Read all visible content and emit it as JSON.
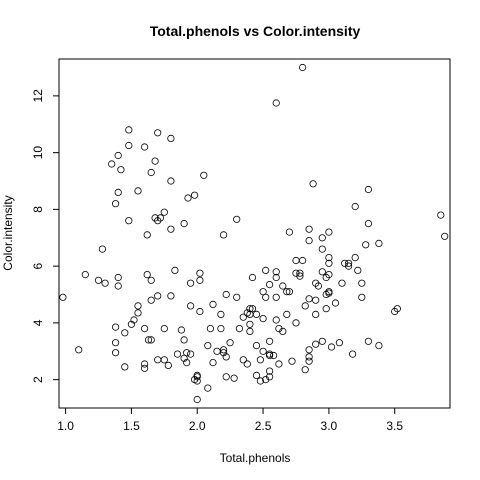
{
  "chart_data": {
    "type": "scatter",
    "title": "Total.phenols vs Color.intensity",
    "xlabel": "Total.phenols",
    "ylabel": "Color.intensity",
    "xlim": [
      0.95,
      3.92
    ],
    "ylim": [
      1.0,
      13.3
    ],
    "x_ticks": [
      1.0,
      1.5,
      2.0,
      2.5,
      3.0,
      3.5
    ],
    "x_tick_labels": [
      "1.0",
      "1.5",
      "2.0",
      "2.5",
      "3.0",
      "3.5"
    ],
    "y_ticks": [
      2,
      4,
      6,
      8,
      10,
      12
    ],
    "y_tick_labels": [
      "2",
      "4",
      "6",
      "8",
      "10",
      "12"
    ],
    "grid": false,
    "legend": "none",
    "marker": "open-circle",
    "points": [
      [
        0.98,
        4.9
      ],
      [
        1.1,
        3.05
      ],
      [
        1.15,
        5.7
      ],
      [
        1.25,
        5.5
      ],
      [
        1.28,
        6.6
      ],
      [
        1.3,
        5.4
      ],
      [
        1.35,
        9.6
      ],
      [
        1.38,
        3.3
      ],
      [
        1.38,
        2.95
      ],
      [
        1.38,
        3.85
      ],
      [
        1.38,
        8.2
      ],
      [
        1.4,
        5.6
      ],
      [
        1.4,
        8.6
      ],
      [
        1.4,
        9.9
      ],
      [
        1.4,
        5.3
      ],
      [
        1.42,
        9.4
      ],
      [
        1.45,
        3.65
      ],
      [
        1.45,
        2.45
      ],
      [
        1.48,
        10.8
      ],
      [
        1.48,
        10.25
      ],
      [
        1.48,
        7.6
      ],
      [
        1.5,
        3.95
      ],
      [
        1.52,
        4.1
      ],
      [
        1.55,
        4.6
      ],
      [
        1.55,
        4.35
      ],
      [
        1.55,
        8.65
      ],
      [
        1.6,
        10.2
      ],
      [
        1.6,
        2.55
      ],
      [
        1.6,
        2.4
      ],
      [
        1.6,
        3.8
      ],
      [
        1.62,
        5.7
      ],
      [
        1.62,
        7.1
      ],
      [
        1.63,
        3.4
      ],
      [
        1.65,
        3.4
      ],
      [
        1.65,
        4.8
      ],
      [
        1.65,
        5.5
      ],
      [
        1.65,
        9.3
      ],
      [
        1.68,
        9.7
      ],
      [
        1.68,
        7.7
      ],
      [
        1.7,
        10.7
      ],
      [
        1.7,
        7.6
      ],
      [
        1.7,
        4.95
      ],
      [
        1.7,
        2.7
      ],
      [
        1.72,
        7.7
      ],
      [
        1.75,
        7.9
      ],
      [
        1.75,
        2.7
      ],
      [
        1.75,
        3.8
      ],
      [
        1.78,
        2.5
      ],
      [
        1.8,
        9.0
      ],
      [
        1.8,
        10.5
      ],
      [
        1.8,
        7.3
      ],
      [
        1.8,
        4.95
      ],
      [
        1.83,
        5.85
      ],
      [
        1.85,
        2.9
      ],
      [
        1.88,
        3.75
      ],
      [
        1.9,
        3.4
      ],
      [
        1.9,
        7.5
      ],
      [
        1.9,
        2.75
      ],
      [
        1.92,
        2.95
      ],
      [
        1.92,
        2.6
      ],
      [
        1.93,
        8.4
      ],
      [
        1.95,
        4.6
      ],
      [
        1.95,
        5.4
      ],
      [
        1.95,
        2.9
      ],
      [
        1.98,
        2.0
      ],
      [
        1.98,
        8.5
      ],
      [
        2.0,
        1.95
      ],
      [
        2.0,
        2.1
      ],
      [
        2.0,
        1.3
      ],
      [
        2.0,
        2.15
      ],
      [
        2.02,
        5.75
      ],
      [
        2.02,
        5.5
      ],
      [
        2.02,
        4.4
      ],
      [
        2.05,
        9.2
      ],
      [
        2.08,
        3.2
      ],
      [
        2.08,
        1.7
      ],
      [
        2.1,
        3.8
      ],
      [
        2.12,
        2.6
      ],
      [
        2.12,
        4.65
      ],
      [
        2.15,
        3.0
      ],
      [
        2.18,
        3.8
      ],
      [
        2.18,
        4.3
      ],
      [
        2.2,
        2.95
      ],
      [
        2.2,
        7.1
      ],
      [
        2.2,
        3.05
      ],
      [
        2.22,
        2.1
      ],
      [
        2.22,
        5.0
      ],
      [
        2.22,
        2.8
      ],
      [
        2.25,
        3.3
      ],
      [
        2.28,
        2.05
      ],
      [
        2.3,
        7.65
      ],
      [
        2.3,
        4.9
      ],
      [
        2.32,
        3.8
      ],
      [
        2.35,
        2.7
      ],
      [
        2.35,
        4.2
      ],
      [
        2.38,
        2.55
      ],
      [
        2.38,
        4.35
      ],
      [
        2.4,
        3.95
      ],
      [
        2.4,
        3.7
      ],
      [
        2.4,
        4.5
      ],
      [
        2.4,
        4.3
      ],
      [
        2.42,
        5.6
      ],
      [
        2.42,
        4.5
      ],
      [
        2.45,
        2.15
      ],
      [
        2.45,
        3.2
      ],
      [
        2.45,
        4.3
      ],
      [
        2.48,
        1.95
      ],
      [
        2.48,
        2.7
      ],
      [
        2.5,
        5.1
      ],
      [
        2.5,
        4.15
      ],
      [
        2.5,
        3.0
      ],
      [
        2.52,
        5.85
      ],
      [
        2.52,
        4.9
      ],
      [
        2.52,
        2.0
      ],
      [
        2.55,
        5.35
      ],
      [
        2.55,
        2.9
      ],
      [
        2.55,
        2.85
      ],
      [
        2.55,
        2.1
      ],
      [
        2.55,
        3.35
      ],
      [
        2.55,
        2.3
      ],
      [
        2.58,
        2.85
      ],
      [
        2.6,
        4.9
      ],
      [
        2.6,
        11.75
      ],
      [
        2.6,
        5.8
      ],
      [
        2.6,
        5.6
      ],
      [
        2.6,
        4.1
      ],
      [
        2.62,
        3.8
      ],
      [
        2.62,
        2.55
      ],
      [
        2.65,
        3.7
      ],
      [
        2.65,
        5.3
      ],
      [
        2.68,
        5.1
      ],
      [
        2.68,
        4.3
      ],
      [
        2.7,
        5.1
      ],
      [
        2.7,
        7.2
      ],
      [
        2.72,
        2.65
      ],
      [
        2.75,
        5.75
      ],
      [
        2.75,
        4.0
      ],
      [
        2.75,
        6.2
      ],
      [
        2.78,
        5.75
      ],
      [
        2.78,
        5.65
      ],
      [
        2.8,
        13.0
      ],
      [
        2.8,
        6.2
      ],
      [
        2.82,
        2.35
      ],
      [
        2.82,
        4.6
      ],
      [
        2.85,
        6.9
      ],
      [
        2.85,
        7.3
      ],
      [
        2.85,
        4.85
      ],
      [
        2.85,
        3.05
      ],
      [
        2.85,
        2.65
      ],
      [
        2.85,
        2.8
      ],
      [
        2.88,
        8.9
      ],
      [
        2.9,
        3.25
      ],
      [
        2.9,
        4.8
      ],
      [
        2.9,
        5.4
      ],
      [
        2.9,
        4.3
      ],
      [
        2.92,
        5.3
      ],
      [
        2.95,
        5.8
      ],
      [
        2.95,
        7.0
      ],
      [
        2.95,
        3.35
      ],
      [
        2.95,
        6.6
      ],
      [
        2.98,
        5.0
      ],
      [
        2.98,
        4.5
      ],
      [
        2.98,
        5.6
      ],
      [
        3.0,
        7.2
      ],
      [
        3.0,
        5.7
      ],
      [
        3.0,
        6.3
      ],
      [
        3.0,
        5.05
      ],
      [
        3.0,
        5.1
      ],
      [
        3.0,
        6.1
      ],
      [
        3.02,
        3.15
      ],
      [
        3.05,
        4.7
      ],
      [
        3.08,
        3.3
      ],
      [
        3.1,
        5.4
      ],
      [
        3.12,
        6.1
      ],
      [
        3.15,
        6.1
      ],
      [
        3.15,
        6.0
      ],
      [
        3.18,
        2.9
      ],
      [
        3.2,
        6.3
      ],
      [
        3.2,
        8.1
      ],
      [
        3.22,
        5.85
      ],
      [
        3.25,
        5.4
      ],
      [
        3.25,
        4.9
      ],
      [
        3.28,
        6.75
      ],
      [
        3.3,
        7.5
      ],
      [
        3.3,
        8.7
      ],
      [
        3.3,
        3.35
      ],
      [
        3.38,
        6.8
      ],
      [
        3.38,
        3.2
      ],
      [
        3.5,
        4.4
      ],
      [
        3.52,
        4.5
      ],
      [
        3.85,
        7.8
      ],
      [
        3.88,
        7.05
      ]
    ]
  }
}
